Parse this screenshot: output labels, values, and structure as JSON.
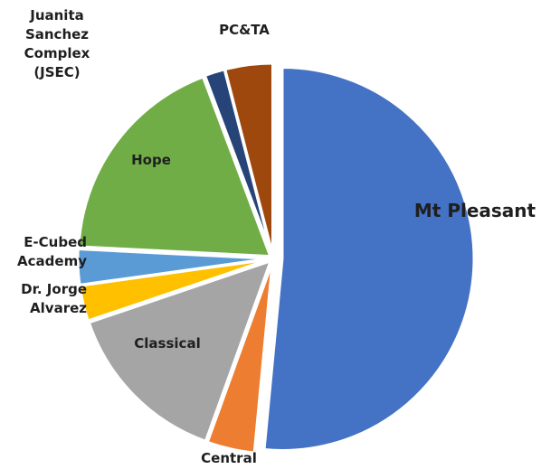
{
  "chart_data": {
    "type": "pie",
    "exploded": true,
    "start_angle_deg": 0,
    "direction": "clockwise",
    "slices": [
      {
        "label": "Mt Pleasant",
        "value": 51.5,
        "color": "#4472C4",
        "label_side": "right",
        "label_size": "large",
        "label_lines": [
          "Mt Pleasant"
        ]
      },
      {
        "label": "Central",
        "value": 4.0,
        "color": "#ED7D31",
        "label_side": "below",
        "label_size": "normal",
        "label_lines": [
          "Central"
        ]
      },
      {
        "label": "Classical",
        "value": 14.3,
        "color": "#A5A5A5",
        "label_side": "inside",
        "label_size": "normal",
        "label_lines": [
          "Classical"
        ]
      },
      {
        "label": "Dr. Jorge Alvarez",
        "value": 3.0,
        "color": "#FFC000",
        "label_side": "left",
        "label_size": "normal",
        "label_lines": [
          "Dr. Jorge",
          "Alvarez"
        ]
      },
      {
        "label": "E-Cubed Academy",
        "value": 3.0,
        "color": "#5B9BD5",
        "label_side": "left",
        "label_size": "normal",
        "label_lines": [
          "E-Cubed",
          "Academy"
        ]
      },
      {
        "label": "Hope",
        "value": 18.5,
        "color": "#70AD47",
        "label_side": "inside",
        "label_size": "normal",
        "label_lines": [
          "Hope"
        ]
      },
      {
        "label": "Juanita Sanchez Complex (JSEC)",
        "value": 1.7,
        "color": "#264478",
        "label_side": "upper-left",
        "label_size": "normal",
        "label_lines": [
          "Juanita",
          "Sanchez",
          "Complex",
          "(JSEC)"
        ]
      },
      {
        "label": "PC&TA",
        "value": 4.0,
        "color": "#9E480E",
        "label_side": "above",
        "label_size": "normal",
        "label_lines": [
          "PC&TA"
        ]
      }
    ],
    "legend": "none",
    "title": ""
  }
}
